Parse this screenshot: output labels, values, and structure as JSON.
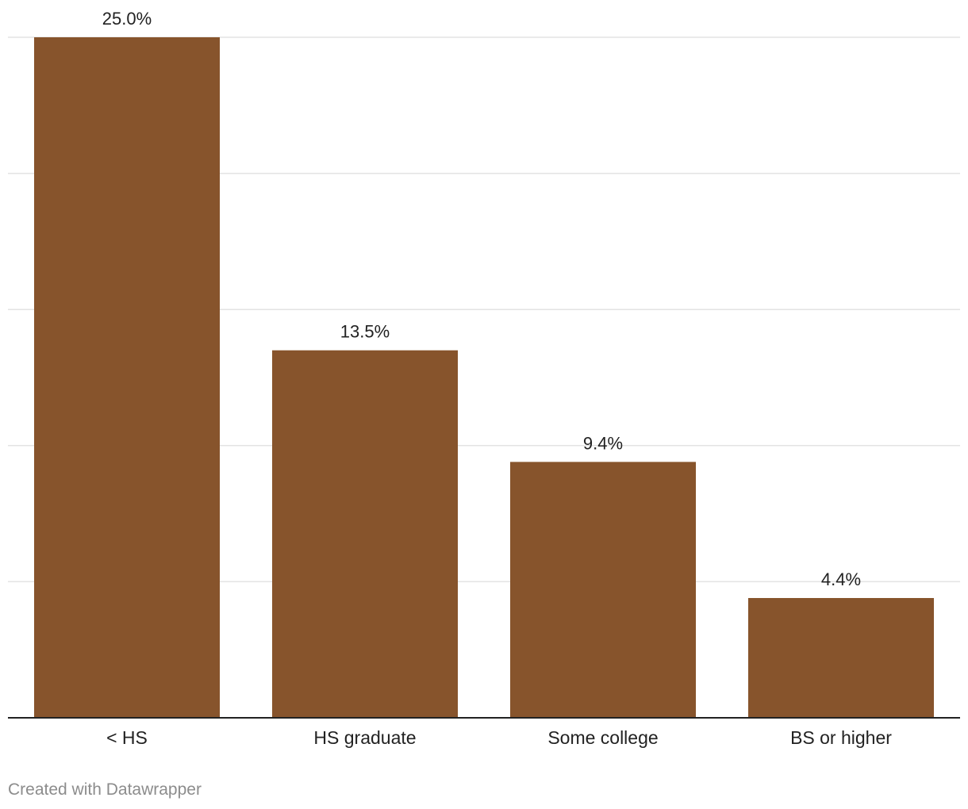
{
  "chart_data": {
    "type": "bar",
    "categories": [
      "< HS",
      "HS graduate",
      "Some college",
      "BS or higher"
    ],
    "values": [
      25.0,
      13.5,
      9.4,
      4.4
    ],
    "value_labels": [
      "25.0%",
      "13.5%",
      "9.4%",
      "4.4%"
    ],
    "title": "",
    "xlabel": "",
    "ylabel": "",
    "ylim": [
      0,
      25
    ],
    "y_gridlines": [
      0,
      5,
      10,
      15,
      20,
      25
    ],
    "grid": true,
    "bar_color": "#87542C",
    "grid_color": "#e3e3e3",
    "baseline_color": "#222222"
  },
  "footer": {
    "credit": "Created with Datawrapper"
  }
}
